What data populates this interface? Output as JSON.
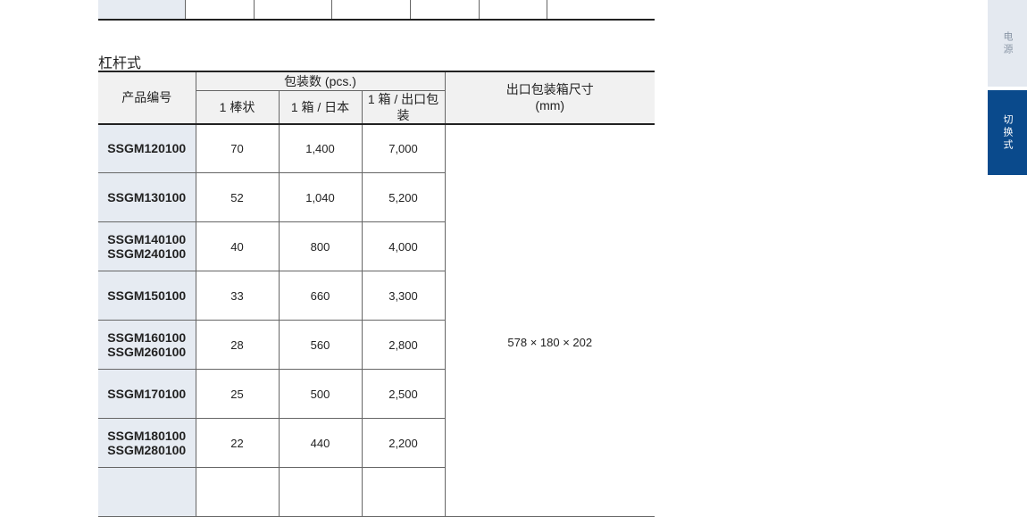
{
  "section_title": "杠杆式",
  "headers": {
    "product_code": "产品编号",
    "pack_qty": "包装数 (pcs.)",
    "stick": "1 棒状",
    "box_japan": "1 箱 / 日本",
    "box_export": "1 箱 / 出口包装",
    "export_box_size": "出口包装箱尺寸",
    "unit": "(mm)"
  },
  "rows": [
    {
      "code": "SSGM120100",
      "stick": "70",
      "box_japan": "1,400",
      "box_export": "7,000"
    },
    {
      "code": "SSGM130100",
      "stick": "52",
      "box_japan": "1,040",
      "box_export": "5,200"
    },
    {
      "code": "SSGM140100\nSSGM240100",
      "stick": "40",
      "box_japan": "800",
      "box_export": "4,000"
    },
    {
      "code": "SSGM150100",
      "stick": "33",
      "box_japan": "660",
      "box_export": "3,300"
    },
    {
      "code": "SSGM160100\nSSGM260100",
      "stick": "28",
      "box_japan": "560",
      "box_export": "2,800"
    },
    {
      "code": "SSGM170100",
      "stick": "25",
      "box_japan": "500",
      "box_export": "2,500"
    },
    {
      "code": "SSGM180100\nSSGM280100",
      "stick": "22",
      "box_japan": "440",
      "box_export": "2,200"
    }
  ],
  "export_box_dimensions": "578 × 180 × 202",
  "side_tabs": [
    {
      "label": "电源",
      "active": false
    },
    {
      "label": "切换式",
      "active": true
    }
  ],
  "colors": {
    "code_cell_bg": "#e6ebf2",
    "active_tab": "#0a4a8c",
    "inactive_tab": "#e4e9f0"
  }
}
